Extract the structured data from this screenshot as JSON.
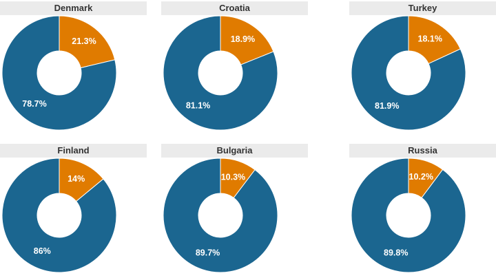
{
  "colors": {
    "minor": "#e07b00",
    "major": "#1b6690"
  },
  "chart_data": [
    {
      "type": "pie",
      "title": "Denmark",
      "slices": [
        {
          "value": 21.3,
          "label": "21.3%"
        },
        {
          "value": 78.7,
          "label": "78.7%"
        }
      ]
    },
    {
      "type": "pie",
      "title": "Croatia",
      "slices": [
        {
          "value": 18.9,
          "label": "18.9%"
        },
        {
          "value": 81.1,
          "label": "81.1%"
        }
      ]
    },
    {
      "type": "pie",
      "title": "Turkey",
      "slices": [
        {
          "value": 18.1,
          "label": "18.1%"
        },
        {
          "value": 81.9,
          "label": "81.9%"
        }
      ]
    },
    {
      "type": "pie",
      "title": "Finland",
      "slices": [
        {
          "value": 14,
          "label": "14%"
        },
        {
          "value": 86,
          "label": "86%"
        }
      ]
    },
    {
      "type": "pie",
      "title": "Bulgaria",
      "slices": [
        {
          "value": 10.3,
          "label": "10.3%"
        },
        {
          "value": 89.7,
          "label": "89.7%"
        }
      ]
    },
    {
      "type": "pie",
      "title": "Russia",
      "slices": [
        {
          "value": 10.2,
          "label": "10.2%"
        },
        {
          "value": 89.8,
          "label": "89.8%"
        }
      ]
    }
  ]
}
